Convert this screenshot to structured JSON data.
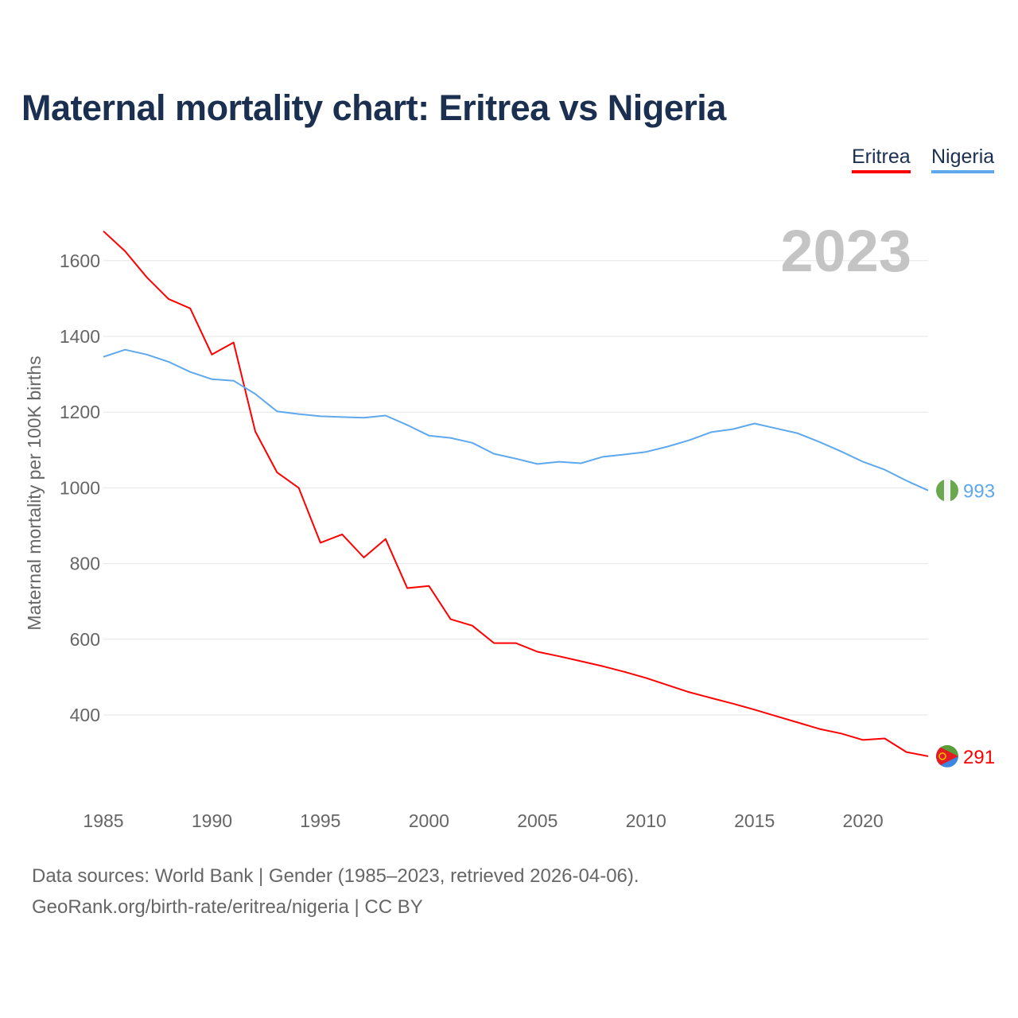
{
  "chart_data": {
    "type": "line",
    "title": "Maternal mortality chart: Eritrea vs Nigeria",
    "xlabel": "",
    "ylabel": "Maternal mortality per 100K births",
    "year_label": "2023",
    "x": [
      1985,
      1986,
      1987,
      1988,
      1989,
      1990,
      1991,
      1992,
      1993,
      1994,
      1995,
      1996,
      1997,
      1998,
      1999,
      2000,
      2001,
      2002,
      2003,
      2004,
      2005,
      2006,
      2007,
      2008,
      2009,
      2010,
      2011,
      2012,
      2013,
      2014,
      2015,
      2016,
      2017,
      2018,
      2019,
      2020,
      2021,
      2022,
      2023
    ],
    "xticks": [
      1985,
      1990,
      1995,
      2000,
      2005,
      2010,
      2015,
      2020
    ],
    "yticks": [
      400,
      600,
      800,
      1000,
      1200,
      1400,
      1600
    ],
    "xlim": [
      1985,
      2023
    ],
    "ylim": [
      200,
      1700
    ],
    "grid": true,
    "legend_position": "top-right",
    "series": [
      {
        "name": "Eritrea",
        "color": "#ff0000",
        "end_label": "291",
        "values": [
          1678,
          1625,
          1556,
          1499,
          1474,
          1352,
          1384,
          1149,
          1041,
          1000,
          855,
          877,
          816,
          865,
          735,
          741,
          653,
          636,
          590,
          590,
          567,
          555,
          542,
          529,
          514,
          498,
          479,
          460,
          445,
          430,
          414,
          397,
          380,
          363,
          351,
          334,
          338,
          302,
          291
        ]
      },
      {
        "name": "Nigeria",
        "color": "#5ea8ec",
        "end_label": "993",
        "values": [
          1346,
          1365,
          1352,
          1333,
          1306,
          1287,
          1283,
          1248,
          1202,
          1195,
          1189,
          1187,
          1185,
          1191,
          1166,
          1138,
          1132,
          1119,
          1090,
          1077,
          1063,
          1069,
          1065,
          1082,
          1088,
          1095,
          1109,
          1126,
          1147,
          1155,
          1170,
          1157,
          1144,
          1121,
          1096,
          1069,
          1048,
          1019,
          993
        ]
      }
    ]
  },
  "footer": {
    "sources": "Data sources: World Bank | Gender (1985–2023, retrieved 2026-04-06).",
    "credit": "GeoRank.org/birth-rate/eritrea/nigeria | CC BY"
  }
}
